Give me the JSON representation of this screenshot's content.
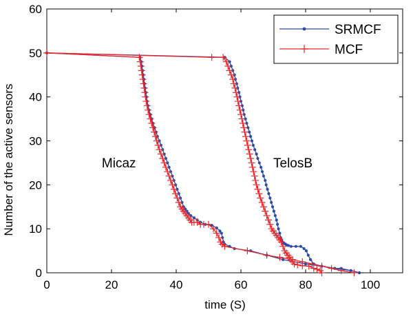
{
  "chart_data": {
    "type": "line",
    "title": "",
    "xlabel": "time (S)",
    "ylabel": "Number of the active sensors",
    "xlim": [
      0,
      110
    ],
    "ylim": [
      0,
      60
    ],
    "xticks": [
      0,
      20,
      40,
      60,
      80,
      100
    ],
    "yticks": [
      0,
      10,
      20,
      30,
      40,
      50,
      60
    ],
    "grid": false,
    "legend_position": "top-right",
    "colors": {
      "SRMCF": "#2b4ba8",
      "MCF": "#e8262b"
    },
    "annotations": [
      {
        "text": "Micaz",
        "x": 17,
        "y": 24
      },
      {
        "text": "TelosB",
        "x": 70,
        "y": 24
      }
    ],
    "series": [
      {
        "name": "SRMCF",
        "marker": "dot",
        "groups": [
          {
            "label": "Micaz",
            "x": [
              0,
              28.8,
              29.2,
              29.4,
              29.6,
              29.8,
              30.0,
              30.2,
              30.4,
              30.6,
              30.8,
              31.0,
              31.3,
              31.6,
              32.0,
              32.4,
              32.8,
              33.3,
              33.8,
              34.2,
              34.8,
              35.3,
              35.8,
              36.3,
              36.8,
              37.3,
              37.8,
              38.3,
              38.8,
              39.3,
              39.8,
              40.3,
              40.8,
              41.3,
              41.8,
              42.3,
              42.8,
              43.3,
              43.8,
              44.5,
              45.5,
              46.5,
              47.5,
              49.0,
              51.0,
              52.5,
              53.5,
              54.0,
              54.3,
              54.6,
              55.0,
              56.5,
              58.0,
              63.0,
              68.0,
              73.0,
              80.0,
              85.0,
              89.0,
              94.0,
              96.6
            ],
            "y": [
              50,
              49,
              48,
              47,
              46,
              45,
              44,
              43,
              42,
              41,
              40,
              39,
              38,
              37,
              36,
              35,
              34,
              33,
              32,
              31,
              30,
              29,
              28,
              27,
              26,
              25,
              24,
              23,
              22,
              21,
              20,
              19,
              18,
              17,
              16,
              15,
              14.5,
              14,
              13.5,
              13,
              12.5,
              12,
              11.5,
              11,
              10.8,
              10.2,
              9.5,
              9,
              8,
              7,
              6.5,
              6,
              5.5,
              5,
              4,
              3,
              2,
              1.5,
              1,
              0.5,
              0
            ]
          },
          {
            "label": "TelosB",
            "x": [
              0,
              55.0,
              56.5,
              57.0,
              57.5,
              58.0,
              58.3,
              58.7,
              59.0,
              59.4,
              59.7,
              60.0,
              60.4,
              60.7,
              61.0,
              61.4,
              61.8,
              62.2,
              62.6,
              63.0,
              63.4,
              63.8,
              64.3,
              64.8,
              65.2,
              65.7,
              66.2,
              66.6,
              67.0,
              67.5,
              67.8,
              68.2,
              68.6,
              69.0,
              69.4,
              69.8,
              70.2,
              70.6,
              71.0,
              71.3,
              71.6,
              72.0,
              72.3,
              72.6,
              72.9,
              73.2,
              73.5,
              73.8,
              74.2,
              74.7,
              75.5,
              77.0,
              78.5,
              79.5,
              80.2,
              80.8,
              81.5,
              82.5,
              85.0,
              89.0,
              91.0,
              94.0,
              96.6
            ],
            "y": [
              50,
              49,
              48,
              47,
              46,
              45,
              44,
              43,
              42,
              41,
              40,
              39,
              38,
              37,
              36,
              35,
              34,
              33,
              32,
              31,
              30,
              29,
              28,
              27,
              26,
              25,
              24,
              23,
              22,
              21,
              20,
              19,
              18,
              17,
              16,
              15,
              14,
              13,
              12,
              11,
              10,
              9,
              8,
              7.5,
              7,
              6.8,
              6.6,
              6.5,
              6.3,
              6.2,
              6,
              6,
              6,
              5.5,
              5,
              4,
              3,
              2,
              1.5,
              1,
              1,
              0.5,
              0
            ]
          }
        ]
      },
      {
        "name": "MCF",
        "marker": "plus",
        "groups": [
          {
            "label": "Micaz",
            "x": [
              0,
              28.6,
              28.9,
              29.1,
              29.3,
              29.5,
              29.7,
              29.9,
              30.1,
              30.3,
              30.5,
              30.7,
              31.0,
              31.3,
              31.6,
              32.0,
              32.4,
              32.8,
              33.2,
              33.6,
              34.0,
              34.4,
              34.8,
              35.3,
              35.8,
              36.3,
              36.8,
              37.3,
              37.8,
              38.3,
              38.8,
              39.3,
              39.8,
              40.3,
              40.8,
              41.3,
              41.8,
              42.3,
              42.8,
              43.3,
              43.8,
              44.3,
              44.8,
              45.5,
              46.5,
              47.5,
              48.5,
              50.0,
              51.5,
              52.5,
              53.2,
              53.7,
              54.2,
              55.0,
              62.0,
              68.0,
              72.0,
              76.0,
              79.0,
              82.0,
              85.0,
              88.0,
              91.0,
              95.0
            ],
            "y": [
              50,
              49,
              48,
              47,
              46,
              45,
              44,
              43,
              42,
              41,
              40,
              39,
              38,
              37,
              36,
              35,
              34,
              33,
              32,
              31,
              30,
              29,
              28,
              27,
              26,
              25,
              24,
              23,
              22,
              21,
              20,
              19,
              18,
              17,
              16,
              15,
              14.5,
              14,
              13.5,
              13,
              12.5,
              12,
              11.5,
              11.5,
              11.5,
              11,
              11,
              11,
              10,
              9,
              8,
              7,
              6.5,
              6,
              5,
              4,
              3.5,
              3,
              2.5,
              2,
              1.5,
              1,
              0.5,
              0
            ]
          },
          {
            "label": "TelosB",
            "x": [
              0,
              51.0,
              54.5,
              55.5,
              56.0,
              56.5,
              57.0,
              57.5,
              57.8,
              58.2,
              58.5,
              58.8,
              59.1,
              59.4,
              59.7,
              60.0,
              60.3,
              60.6,
              60.9,
              61.2,
              61.5,
              61.8,
              62.1,
              62.4,
              62.7,
              63.0,
              63.3,
              63.6,
              63.9,
              64.2,
              64.5,
              64.8,
              65.2,
              65.6,
              66.0,
              66.5,
              67.0,
              67.5,
              68.0,
              68.5,
              69.0,
              69.5,
              70.0,
              70.5,
              71.0,
              71.5,
              72.0,
              72.5,
              73.0,
              73.5,
              74.0,
              74.5,
              75.0,
              75.5,
              76.0,
              76.5,
              77.5,
              79.0,
              81.0,
              82.5,
              83.5,
              84.5,
              85.0
            ],
            "y": [
              50,
              49,
              49,
              48,
              47,
              46,
              45,
              44,
              43,
              42,
              41,
              40,
              39,
              38,
              37,
              36,
              35,
              34,
              33,
              32,
              31,
              30,
              29,
              28,
              27,
              26,
              25,
              24,
              23,
              22,
              21,
              20,
              19,
              18,
              17,
              16,
              15,
              14,
              13,
              12,
              11,
              10,
              9.5,
              9,
              8.5,
              8,
              7.5,
              7,
              6,
              5,
              4.5,
              4,
              3.5,
              3,
              2.5,
              2,
              1.8,
              1.6,
              1.5,
              1,
              0.8,
              0.5,
              0
            ]
          }
        ]
      }
    ]
  }
}
